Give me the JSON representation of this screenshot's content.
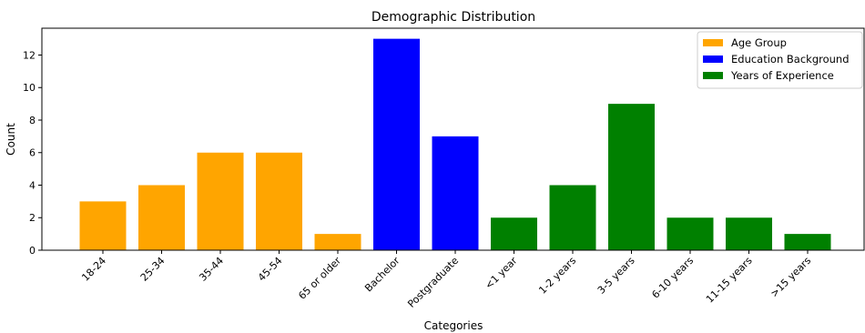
{
  "chart_data": {
    "type": "bar",
    "title": "Demographic Distribution",
    "xlabel": "Categories",
    "ylabel": "Count",
    "ylim": [
      0,
      13.65
    ],
    "yticks": [
      0,
      2,
      4,
      6,
      8,
      10,
      12
    ],
    "grid": false,
    "legend_position": "top-right",
    "categories": [
      "18-24",
      "25-34",
      "35-44",
      "45-54",
      "65 or older",
      "Bachelor",
      "Postgraduate",
      "<1 year",
      "1-2 years",
      "3-5 years",
      "6-10 years",
      "11-15 years",
      ">15 years"
    ],
    "series": [
      {
        "name": "Age Group",
        "color": "#ffa500",
        "values": [
          3,
          4,
          6,
          6,
          1,
          null,
          null,
          null,
          null,
          null,
          null,
          null,
          null
        ]
      },
      {
        "name": "Education Background",
        "color": "#0000ff",
        "values": [
          null,
          null,
          null,
          null,
          null,
          13,
          7,
          null,
          null,
          null,
          null,
          null,
          null
        ]
      },
      {
        "name": "Years of Experience",
        "color": "#008000",
        "values": [
          null,
          null,
          null,
          null,
          null,
          null,
          null,
          2,
          4,
          9,
          2,
          2,
          1
        ]
      }
    ]
  }
}
